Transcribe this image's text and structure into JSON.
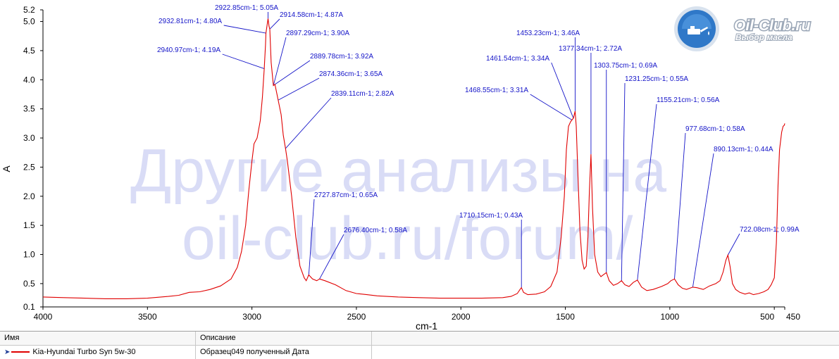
{
  "watermark": {
    "line1": "Другие анализы на",
    "line2": "oil-club.ru/forum/"
  },
  "logo": {
    "title": "Oil-Club.ru",
    "subtitle": "Выбор масла",
    "icon": "oil-can-icon"
  },
  "colors": {
    "series": "#e00000",
    "annotation": "#1414c8",
    "grid": "#c0c0c0"
  },
  "chart_data": {
    "type": "line",
    "xlabel": "cm-1",
    "ylabel": "A",
    "xlim": [
      4000,
      450
    ],
    "ylim": [
      0.1,
      5.2
    ],
    "x_ticks": [
      4000,
      3500,
      3000,
      2500,
      2000,
      1500,
      1000,
      500,
      450
    ],
    "y_ticks": [
      0.1,
      0.5,
      1.0,
      1.5,
      2.0,
      2.5,
      3.0,
      3.5,
      4.0,
      4.5,
      5.0,
      5.2
    ],
    "y_tick_labels": [
      "0.1",
      "0.5",
      "1.0",
      "1.5",
      "2.0",
      "2.5",
      "3.0",
      "3.5",
      "4.0",
      "4.5",
      "5.0",
      "5.2"
    ],
    "grid": false,
    "series": [
      {
        "name": "Kia-Hyundai Turbo Syn 5w-30",
        "points": [
          [
            4000,
            0.27
          ],
          [
            3900,
            0.26
          ],
          [
            3800,
            0.25
          ],
          [
            3700,
            0.24
          ],
          [
            3600,
            0.24
          ],
          [
            3500,
            0.25
          ],
          [
            3400,
            0.28
          ],
          [
            3350,
            0.3
          ],
          [
            3300,
            0.35
          ],
          [
            3250,
            0.36
          ],
          [
            3200,
            0.4
          ],
          [
            3150,
            0.46
          ],
          [
            3100,
            0.58
          ],
          [
            3070,
            0.78
          ],
          [
            3050,
            1.05
          ],
          [
            3030,
            1.5
          ],
          [
            3015,
            2.1
          ],
          [
            3000,
            2.6
          ],
          [
            2990,
            2.9
          ],
          [
            2975,
            3.0
          ],
          [
            2960,
            3.3
          ],
          [
            2950,
            3.7
          ],
          [
            2940.97,
            4.19
          ],
          [
            2935,
            4.6
          ],
          [
            2932.81,
            4.8
          ],
          [
            2927,
            4.95
          ],
          [
            2922.85,
            5.05
          ],
          [
            2918,
            4.92
          ],
          [
            2914.58,
            4.87
          ],
          [
            2908,
            4.3
          ],
          [
            2900,
            4.0
          ],
          [
            2897.29,
            3.9
          ],
          [
            2889.78,
            3.92
          ],
          [
            2880,
            3.75
          ],
          [
            2874.36,
            3.65
          ],
          [
            2860,
            3.4
          ],
          [
            2850,
            3.05
          ],
          [
            2839.11,
            2.82
          ],
          [
            2830,
            2.6
          ],
          [
            2810,
            2.0
          ],
          [
            2790,
            1.3
          ],
          [
            2770,
            0.8
          ],
          [
            2750,
            0.6
          ],
          [
            2740,
            0.55
          ],
          [
            2727.87,
            0.65
          ],
          [
            2710,
            0.58
          ],
          [
            2690,
            0.55
          ],
          [
            2676.4,
            0.58
          ],
          [
            2650,
            0.55
          ],
          [
            2600,
            0.48
          ],
          [
            2550,
            0.38
          ],
          [
            2500,
            0.33
          ],
          [
            2450,
            0.31
          ],
          [
            2400,
            0.29
          ],
          [
            2300,
            0.27
          ],
          [
            2200,
            0.26
          ],
          [
            2100,
            0.25
          ],
          [
            2000,
            0.25
          ],
          [
            1900,
            0.25
          ],
          [
            1800,
            0.26
          ],
          [
            1760,
            0.28
          ],
          [
            1730,
            0.33
          ],
          [
            1715,
            0.41
          ],
          [
            1710.15,
            0.43
          ],
          [
            1700,
            0.35
          ],
          [
            1680,
            0.31
          ],
          [
            1640,
            0.32
          ],
          [
            1600,
            0.36
          ],
          [
            1570,
            0.45
          ],
          [
            1540,
            0.7
          ],
          [
            1520,
            1.3
          ],
          [
            1505,
            2.0
          ],
          [
            1495,
            2.8
          ],
          [
            1485,
            3.2
          ],
          [
            1475,
            3.28
          ],
          [
            1468.55,
            3.31
          ],
          [
            1461.54,
            3.34
          ],
          [
            1453.23,
            3.46
          ],
          [
            1448,
            3.2
          ],
          [
            1440,
            2.4
          ],
          [
            1430,
            1.4
          ],
          [
            1420,
            0.9
          ],
          [
            1410,
            0.75
          ],
          [
            1400,
            0.8
          ],
          [
            1392,
            1.3
          ],
          [
            1385,
            2.1
          ],
          [
            1377.34,
            2.72
          ],
          [
            1370,
            1.8
          ],
          [
            1360,
            1.0
          ],
          [
            1345,
            0.7
          ],
          [
            1330,
            0.62
          ],
          [
            1315,
            0.66
          ],
          [
            1303.75,
            0.69
          ],
          [
            1290,
            0.55
          ],
          [
            1270,
            0.47
          ],
          [
            1250,
            0.5
          ],
          [
            1231.25,
            0.55
          ],
          [
            1215,
            0.48
          ],
          [
            1195,
            0.45
          ],
          [
            1175,
            0.52
          ],
          [
            1155.21,
            0.56
          ],
          [
            1135,
            0.44
          ],
          [
            1110,
            0.38
          ],
          [
            1080,
            0.4
          ],
          [
            1040,
            0.45
          ],
          [
            1010,
            0.5
          ],
          [
            995,
            0.55
          ],
          [
            977.68,
            0.58
          ],
          [
            960,
            0.48
          ],
          [
            940,
            0.42
          ],
          [
            920,
            0.4
          ],
          [
            905,
            0.42
          ],
          [
            890.13,
            0.44
          ],
          [
            870,
            0.43
          ],
          [
            840,
            0.4
          ],
          [
            810,
            0.46
          ],
          [
            780,
            0.5
          ],
          [
            760,
            0.55
          ],
          [
            745,
            0.7
          ],
          [
            732,
            0.9
          ],
          [
            722.08,
            0.99
          ],
          [
            712,
            0.8
          ],
          [
            700,
            0.5
          ],
          [
            685,
            0.4
          ],
          [
            665,
            0.35
          ],
          [
            640,
            0.32
          ],
          [
            620,
            0.34
          ],
          [
            600,
            0.31
          ],
          [
            575,
            0.33
          ],
          [
            550,
            0.36
          ],
          [
            530,
            0.4
          ],
          [
            515,
            0.48
          ],
          [
            500,
            0.6
          ],
          [
            490,
            1.2
          ],
          [
            482,
            2.2
          ],
          [
            475,
            2.8
          ],
          [
            465,
            3.1
          ],
          [
            458,
            3.2
          ],
          [
            452,
            3.22
          ],
          [
            450,
            3.25
          ]
        ]
      }
    ],
    "annotations": [
      {
        "x": 2922.85,
        "y": 5.05,
        "label": "2922.85cm-1; 5.05A"
      },
      {
        "x": 2914.58,
        "y": 4.87,
        "label": "2914.58cm-1; 4.87A"
      },
      {
        "x": 2932.81,
        "y": 4.8,
        "label": "2932.81cm-1; 4.80A"
      },
      {
        "x": 2897.29,
        "y": 3.9,
        "label": "2897.29cm-1; 3.90A"
      },
      {
        "x": 2940.97,
        "y": 4.19,
        "label": "2940.97cm-1; 4.19A"
      },
      {
        "x": 2889.78,
        "y": 3.92,
        "label": "2889.78cm-1; 3.92A"
      },
      {
        "x": 2874.36,
        "y": 3.65,
        "label": "2874.36cm-1; 3.65A"
      },
      {
        "x": 2839.11,
        "y": 2.82,
        "label": "2839.11cm-1; 2.82A"
      },
      {
        "x": 2727.87,
        "y": 0.65,
        "label": "2727.87cm-1; 0.65A"
      },
      {
        "x": 2676.4,
        "y": 0.58,
        "label": "2676.40cm-1; 0.58A"
      },
      {
        "x": 1710.15,
        "y": 0.43,
        "label": "1710.15cm-1; 0.43A"
      },
      {
        "x": 1453.23,
        "y": 3.46,
        "label": "1453.23cm-1; 3.46A"
      },
      {
        "x": 1461.54,
        "y": 3.34,
        "label": "1461.54cm-1; 3.34A"
      },
      {
        "x": 1377.34,
        "y": 2.72,
        "label": "1377.34cm-1; 2.72A"
      },
      {
        "x": 1468.55,
        "y": 3.31,
        "label": "1468.55cm-1; 3.31A"
      },
      {
        "x": 1303.75,
        "y": 0.69,
        "label": "1303.75cm-1; 0.69A"
      },
      {
        "x": 1231.25,
        "y": 0.55,
        "label": "1231.25cm-1; 0.55A"
      },
      {
        "x": 1155.21,
        "y": 0.56,
        "label": "1155.21cm-1; 0.56A"
      },
      {
        "x": 977.68,
        "y": 0.58,
        "label": "977.68cm-1; 0.58A"
      },
      {
        "x": 890.13,
        "y": 0.44,
        "label": "890.13cm-1; 0.44A"
      },
      {
        "x": 722.08,
        "y": 0.99,
        "label": "722.08cm-1; 0.99A"
      }
    ]
  },
  "legend": {
    "headers": {
      "name": "Имя",
      "description": "Описание"
    },
    "rows": [
      {
        "name": "Kia-Hyundai Turbo Syn 5w-30",
        "description": "Образец049 полученный  Дата",
        "color": "#e00000"
      }
    ]
  }
}
